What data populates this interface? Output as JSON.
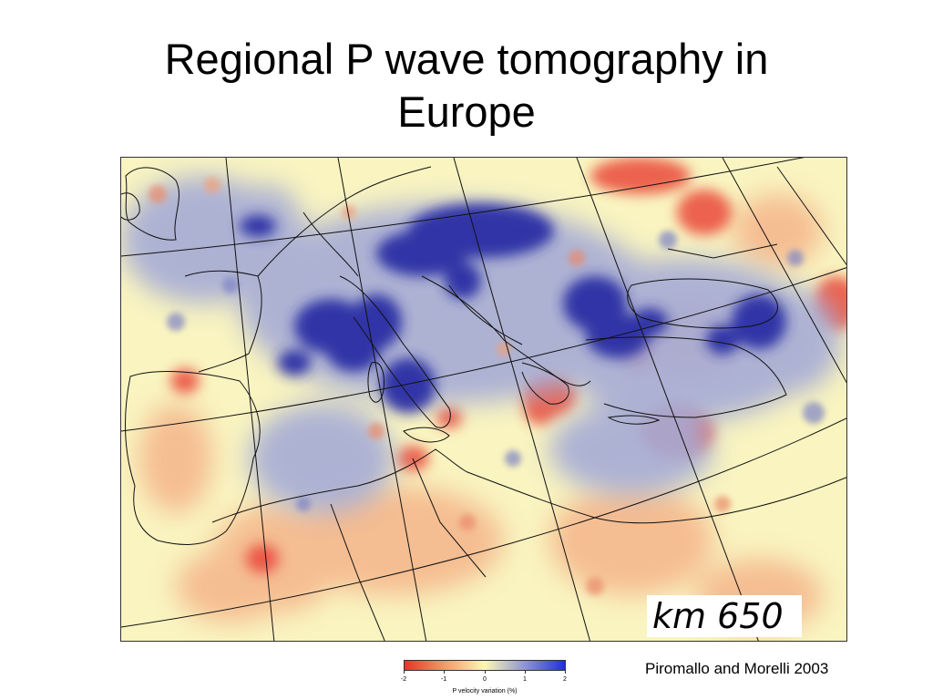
{
  "slide": {
    "title_line1": "Regional P wave tomography in",
    "title_line2": "Europe"
  },
  "map": {
    "depth_label": "km  650",
    "colors": {
      "slow": "#e8342a",
      "neutral": "#fbf7b8",
      "fast": "#2727a8",
      "coastline": "#111111"
    }
  },
  "colorbar": {
    "ticks": [
      "-2",
      "-1",
      "0",
      "1",
      "2"
    ],
    "label": "P velocity variation (%)"
  },
  "citation": "Piromallo and Morelli 2003"
}
